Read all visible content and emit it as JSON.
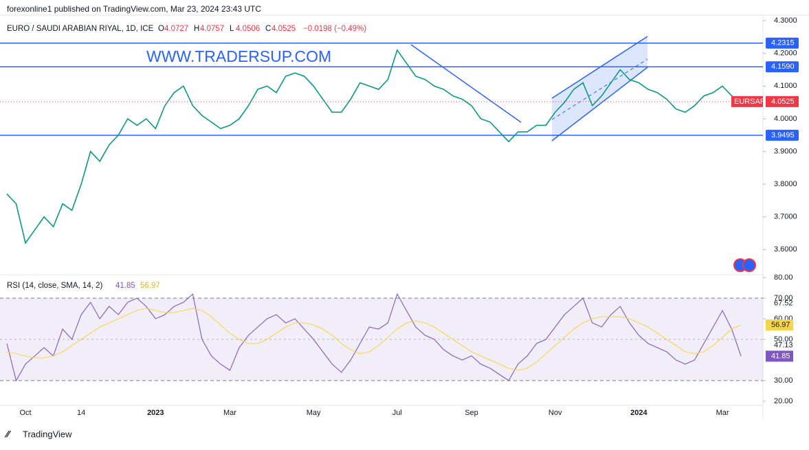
{
  "header": {
    "published": "forexonline1 published on TradingView.com, Mar 23, 2024 23:43 UTC",
    "watermark": "WWW.TRADERSUP.COM",
    "footer": "TradingView"
  },
  "chart_data": [
    {
      "type": "line",
      "title": "EURO / SAUDI ARABIAN RIYAL, 1D, ICE",
      "ohlc": [
        {
          "key": "O",
          "value": "4.0727"
        },
        {
          "key": "H",
          "value": "4.0757"
        },
        {
          "key": "L",
          "value": "4.0506"
        },
        {
          "key": "C",
          "value": "4.0525"
        }
      ],
      "change": "−0.0198 (−0.49%)",
      "categories": [
        null,
        null,
        "Oct",
        null,
        null,
        null,
        null,
        null,
        "14",
        null,
        null,
        null,
        null,
        null,
        null,
        null,
        "2023",
        null,
        null,
        null,
        null,
        null,
        null,
        null,
        "Mar",
        null,
        null,
        null,
        null,
        null,
        null,
        null,
        null,
        "May",
        null,
        null,
        null,
        null,
        null,
        null,
        null,
        null,
        "Jul",
        null,
        null,
        null,
        null,
        null,
        null,
        null,
        "Sep",
        null,
        null,
        null,
        null,
        null,
        null,
        null,
        null,
        "Nov",
        null,
        null,
        null,
        null,
        null,
        null,
        null,
        null,
        "2024",
        null,
        null,
        null,
        null,
        null,
        null,
        null,
        null,
        "Mar",
        null,
        null
      ],
      "series": [
        {
          "name": "EURSAR",
          "color": "#089981",
          "values": [
            3.77,
            3.74,
            3.62,
            3.66,
            3.7,
            3.67,
            3.74,
            3.72,
            3.8,
            3.9,
            3.87,
            3.92,
            3.95,
            4.0,
            3.98,
            4.0,
            3.97,
            4.04,
            4.08,
            4.1,
            4.04,
            4.01,
            3.99,
            3.97,
            3.98,
            4.0,
            4.04,
            4.09,
            4.1,
            4.08,
            4.13,
            4.14,
            4.13,
            4.1,
            4.06,
            4.02,
            4.02,
            4.06,
            4.11,
            4.1,
            4.09,
            4.12,
            4.21,
            4.17,
            4.13,
            4.12,
            4.1,
            4.09,
            4.07,
            4.06,
            4.04,
            4.0,
            3.99,
            3.96,
            3.93,
            3.96,
            3.96,
            3.98,
            3.98,
            4.02,
            4.05,
            4.09,
            4.11,
            4.04,
            4.07,
            4.11,
            4.15,
            4.12,
            4.11,
            4.09,
            4.08,
            4.06,
            4.03,
            4.02,
            4.04,
            4.07,
            4.08,
            4.1,
            4.07,
            4.0525
          ]
        }
      ],
      "levels": [
        {
          "value": 4.2315,
          "label": "4.2315"
        },
        {
          "value": 4.159,
          "label": "4.1590"
        },
        {
          "value": 3.9495,
          "label": "3.9495"
        }
      ],
      "level_color": "#2962ff",
      "last_color": "#f23645",
      "ylim": [
        3.527,
        4.317
      ],
      "yticks": [
        {
          "value": 4.3,
          "label": "4.3000"
        },
        {
          "value": 4.2,
          "label": "4.2000"
        },
        {
          "value": 4.1,
          "label": "4.1000"
        },
        {
          "value": 4.0,
          "label": "4.0000"
        },
        {
          "value": 3.9,
          "label": "3.9000"
        },
        {
          "value": 3.8,
          "label": "3.8000"
        },
        {
          "value": 3.7,
          "label": "3.7000"
        },
        {
          "value": 3.6,
          "label": "3.6000"
        }
      ]
    },
    {
      "type": "line",
      "title": "RSI (14, close, SMA, 14, 2)",
      "series": [
        {
          "color": "#7e57c2",
          "values": [
            48,
            30,
            38,
            42,
            46,
            42,
            55,
            50,
            62,
            68,
            60,
            66,
            62,
            68,
            70,
            66,
            60,
            62,
            66,
            68,
            72,
            50,
            42,
            38,
            35,
            46,
            52,
            56,
            60,
            62,
            58,
            60,
            55,
            50,
            44,
            38,
            34,
            40,
            48,
            56,
            55,
            58,
            72,
            64,
            56,
            52,
            50,
            45,
            42,
            40,
            42,
            38,
            36,
            33,
            30,
            38,
            42,
            48,
            50,
            56,
            62,
            66,
            70,
            58,
            56,
            62,
            66,
            58,
            52,
            48,
            46,
            44,
            40,
            38,
            40,
            48,
            56,
            64,
            55,
            41.85
          ]
        },
        {
          "color": "#f7d54a",
          "values": [
            44,
            43,
            42,
            41,
            41,
            42,
            44,
            47,
            50,
            53,
            56,
            58,
            60,
            62,
            64,
            65,
            64,
            63,
            63,
            64,
            65,
            64,
            61,
            57,
            53,
            50,
            48,
            48,
            50,
            53,
            56,
            58,
            58,
            57,
            55,
            52,
            48,
            45,
            43,
            44,
            47,
            51,
            55,
            58,
            59,
            58,
            56,
            53,
            50,
            47,
            44,
            42,
            40,
            38,
            36,
            35,
            36,
            39,
            43,
            47,
            51,
            55,
            58,
            60,
            61,
            61,
            61,
            60,
            58,
            56,
            53,
            50,
            47,
            44,
            43,
            44,
            47,
            51,
            55,
            56.97
          ]
        }
      ],
      "band": [
        30,
        70
      ],
      "axis_marks": [
        {
          "value": 67.52,
          "label": "67.52"
        },
        {
          "value": 47.13,
          "label": "47.13"
        }
      ],
      "ylim": [
        18,
        81.33
      ],
      "yticks": [
        {
          "value": 80,
          "label": "80.00"
        },
        {
          "value": 70,
          "label": "70.00"
        },
        {
          "value": 60,
          "label": "60.00"
        },
        {
          "value": 50,
          "label": "50.00"
        },
        {
          "value": 30,
          "label": "30.00"
        },
        {
          "value": 20,
          "label": "20.00"
        }
      ]
    }
  ]
}
